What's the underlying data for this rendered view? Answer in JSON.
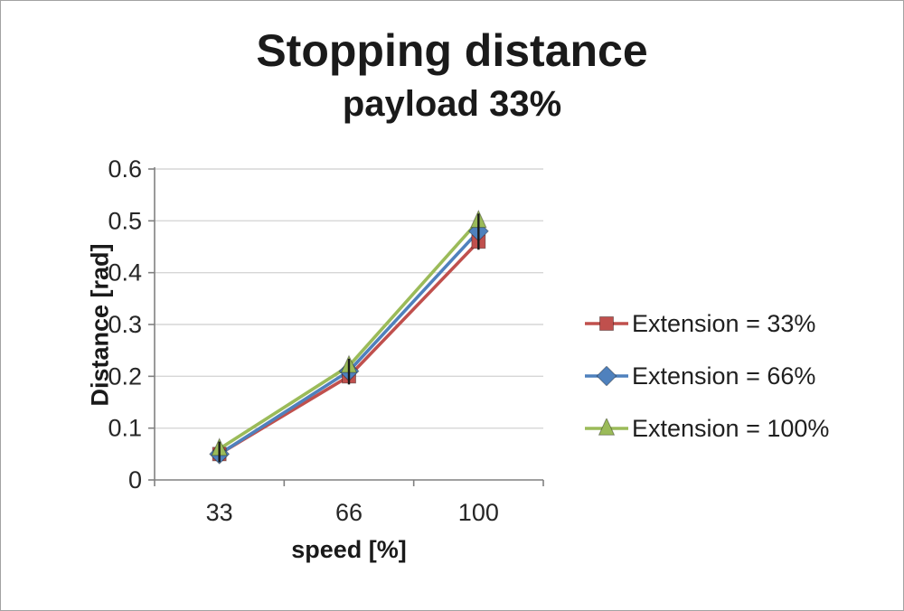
{
  "chart_data": {
    "type": "line",
    "title": "Stopping distance",
    "subtitle": "payload 33%",
    "xlabel": "speed [%]",
    "ylabel": "Distance [rad]",
    "categories": [
      "33",
      "66",
      "100"
    ],
    "y_ticks": [
      0,
      0.1,
      0.2,
      0.3,
      0.4,
      0.5,
      0.6
    ],
    "ylim": [
      0,
      0.6
    ],
    "grid": true,
    "legend_position": "right",
    "series": [
      {
        "name": "Extension = 33%",
        "marker": "square",
        "color": "#c0504d",
        "values": [
          0.05,
          0.2,
          0.46
        ]
      },
      {
        "name": "Extension = 66%",
        "marker": "diamond",
        "color": "#4f81bd",
        "values": [
          0.05,
          0.21,
          0.48
        ]
      },
      {
        "name": "Extension = 100%",
        "marker": "triangle",
        "color": "#9bbb59",
        "values": [
          0.06,
          0.22,
          0.5
        ]
      }
    ],
    "colors": {
      "gridline": "#d6d6d6",
      "axis": "#808080",
      "tick_label": "#262626",
      "high_low_line": "#1a1a1a"
    }
  }
}
